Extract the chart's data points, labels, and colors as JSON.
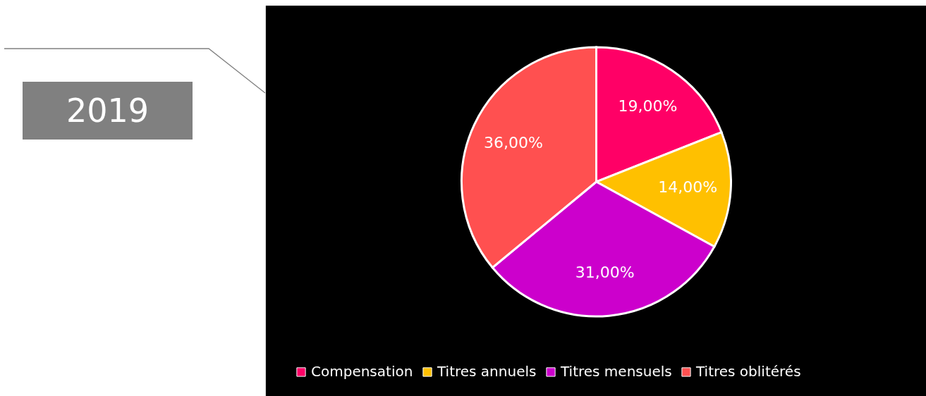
{
  "chart_data": {
    "type": "pie",
    "title": "2019",
    "categories": [
      "Compensation",
      "Titres annuels",
      "Titres mensuels",
      "Titres oblitérés"
    ],
    "values": [
      19,
      14,
      31,
      36
    ],
    "colors": [
      "#ff0066",
      "#ffc000",
      "#cc00cc",
      "#ff5050"
    ],
    "value_labels": [
      "19,00%",
      "14,00%",
      "31,00%",
      "36,00%"
    ],
    "legend": "bottom"
  }
}
